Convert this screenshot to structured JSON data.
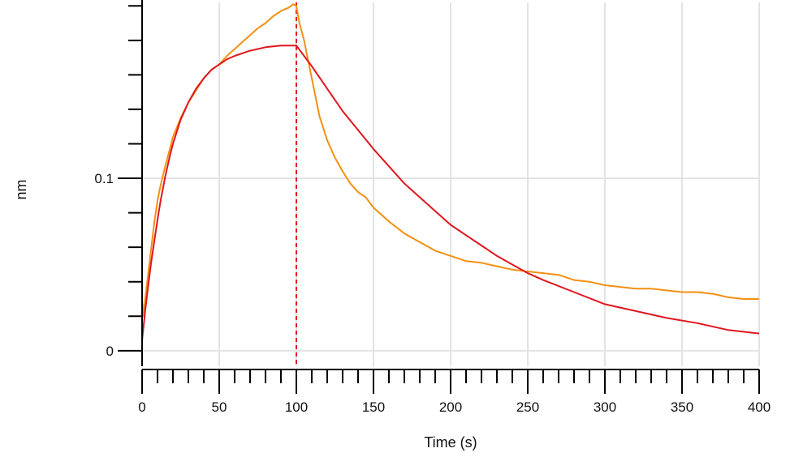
{
  "chart_data": {
    "type": "line",
    "title": "",
    "xlabel": "Time (s)",
    "ylabel": "nm",
    "xlim": [
      0,
      400
    ],
    "ylim": [
      -0.009,
      0.202
    ],
    "x_ticks": [
      0,
      50,
      100,
      150,
      200,
      250,
      300,
      350,
      400
    ],
    "x_tick_labels": [
      "0",
      "50",
      "100",
      "150",
      "200",
      "250",
      "300",
      "350",
      "400"
    ],
    "y_ticks": [
      0,
      0.1
    ],
    "y_tick_labels": [
      "0",
      "0.1"
    ],
    "y_minor_step": 0.02,
    "x_minor_step": 10,
    "grid": true,
    "vertical_markers": [
      0,
      100
    ],
    "colors": {
      "measured": "#F39012",
      "fit": "#E0161E",
      "grid": "#E3E3E3",
      "axis": "#000000"
    },
    "series": [
      {
        "role": "measured",
        "x": [
          0,
          1,
          2,
          4,
          6,
          8,
          10,
          12,
          15,
          18,
          20,
          25,
          30,
          35,
          40,
          45,
          50,
          55,
          60,
          65,
          70,
          75,
          80,
          85,
          90,
          95,
          98,
          100,
          102,
          105,
          110,
          115,
          120,
          125,
          130,
          135,
          140,
          145,
          150,
          160,
          170,
          180,
          190,
          200,
          210,
          220,
          230,
          240,
          250,
          260,
          270,
          280,
          290,
          300,
          310,
          320,
          330,
          340,
          350,
          360,
          370,
          380,
          390,
          400
        ],
        "y": [
          0.03,
          0.02,
          0.03,
          0.045,
          0.06,
          0.075,
          0.087,
          0.096,
          0.107,
          0.117,
          0.124,
          0.135,
          0.144,
          0.151,
          0.158,
          0.163,
          0.166,
          0.171,
          0.175,
          0.179,
          0.183,
          0.187,
          0.19,
          0.194,
          0.197,
          0.199,
          0.201,
          0.2,
          0.19,
          0.18,
          0.158,
          0.136,
          0.122,
          0.112,
          0.104,
          0.097,
          0.092,
          0.089,
          0.083,
          0.075,
          0.068,
          0.063,
          0.058,
          0.055,
          0.052,
          0.051,
          0.049,
          0.047,
          0.046,
          0.045,
          0.044,
          0.041,
          0.04,
          0.038,
          0.037,
          0.036,
          0.036,
          0.035,
          0.034,
          0.034,
          0.033,
          0.031,
          0.03,
          0.03
        ]
      },
      {
        "role": "fit",
        "x": [
          0,
          2,
          4,
          6,
          8,
          10,
          12,
          15,
          18,
          20,
          25,
          30,
          35,
          40,
          45,
          50,
          55,
          60,
          70,
          80,
          90,
          95,
          100,
          105,
          110,
          120,
          130,
          140,
          150,
          160,
          170,
          180,
          190,
          200,
          210,
          220,
          230,
          240,
          250,
          260,
          280,
          300,
          320,
          340,
          360,
          380,
          400
        ],
        "y": [
          0.006,
          0.023,
          0.038,
          0.052,
          0.064,
          0.076,
          0.087,
          0.101,
          0.113,
          0.12,
          0.134,
          0.144,
          0.152,
          0.158,
          0.163,
          0.166,
          0.169,
          0.171,
          0.174,
          0.176,
          0.177,
          0.177,
          0.177,
          0.171,
          0.165,
          0.152,
          0.139,
          0.128,
          0.117,
          0.107,
          0.097,
          0.089,
          0.081,
          0.073,
          0.067,
          0.061,
          0.055,
          0.05,
          0.045,
          0.041,
          0.034,
          0.027,
          0.023,
          0.019,
          0.016,
          0.012,
          0.01
        ]
      }
    ]
  }
}
